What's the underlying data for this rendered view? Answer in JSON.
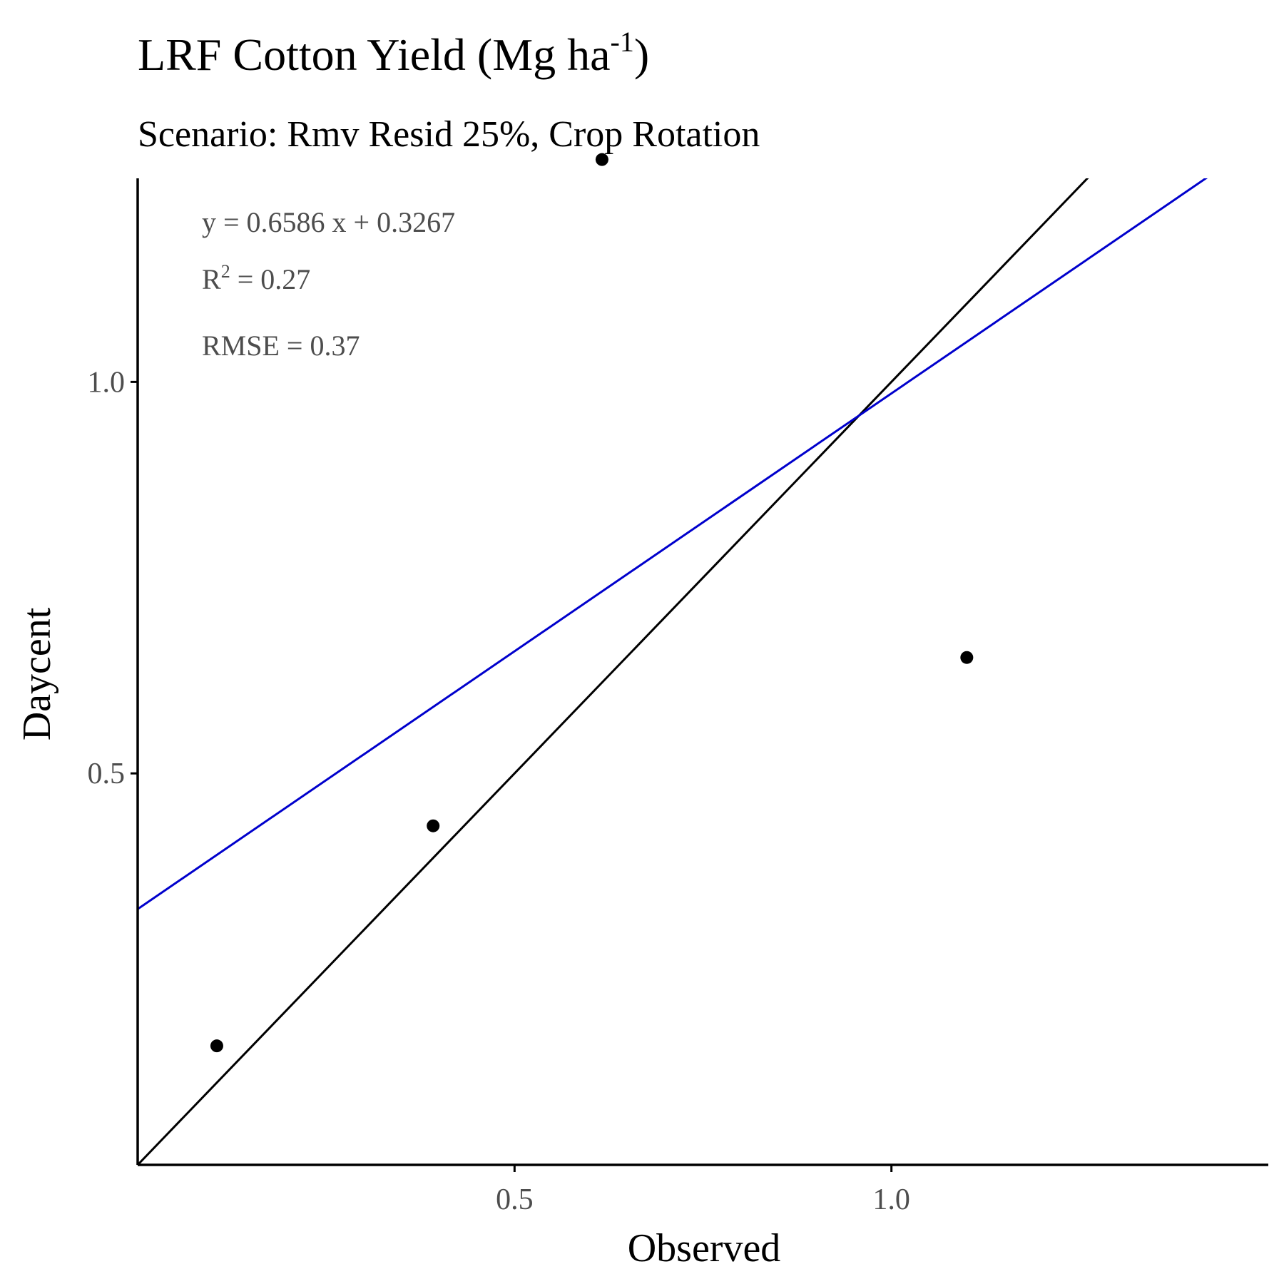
{
  "chart_data": {
    "type": "scatter",
    "title": "LRF Cotton Yield (Mg ha",
    "title_superscript": "-1",
    "title_suffix": ")",
    "subtitle": "Scenario: Rmv Resid 25%, Crop Rotation",
    "xlabel": "Observed",
    "ylabel": "Daycent",
    "xlim": [
      0.0,
      1.5
    ],
    "ylim": [
      0.0,
      1.26
    ],
    "x_ticks": [
      0.5,
      1.0
    ],
    "x_tick_labels": [
      "0.5",
      "1.0"
    ],
    "y_ticks": [
      0.5,
      1.0
    ],
    "y_tick_labels": [
      "0.5",
      "1.0"
    ],
    "grid": false,
    "points": [
      {
        "x": 0.105,
        "y": 0.152
      },
      {
        "x": 0.392,
        "y": 0.433
      },
      {
        "x": 0.616,
        "y": 1.284
      },
      {
        "x": 1.1,
        "y": 0.648
      }
    ],
    "regression_line": {
      "slope": 0.6586,
      "intercept": 0.3267,
      "color": "#0000cc"
    },
    "identity_line": {
      "slope": 1,
      "intercept": 0,
      "color": "#000000"
    },
    "annotations": {
      "equation": "y = 0.6586 x + 0.3267",
      "r2_label": "R",
      "r2_superscript": "2",
      "r2_value": " = 0.27",
      "rmse": "RMSE = 0.37"
    },
    "colors": {
      "points": "#000000",
      "axis": "#000000",
      "tick_text": "#4d4d4d",
      "annotation_text": "#4d4d4d"
    }
  }
}
